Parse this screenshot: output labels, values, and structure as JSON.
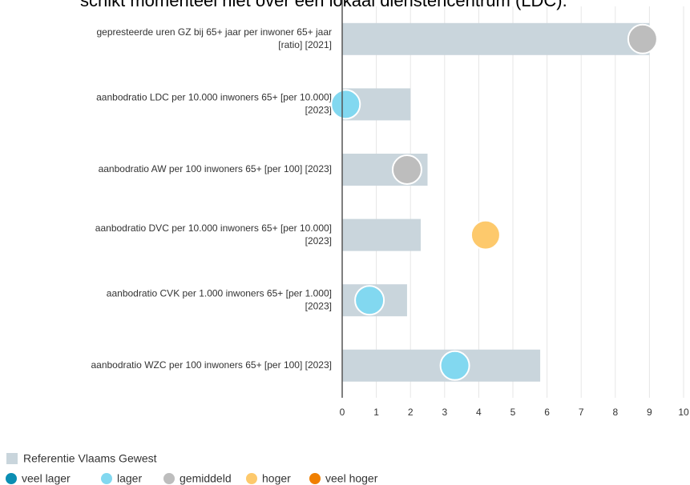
{
  "chart_data": {
    "type": "bar_dot",
    "intro": "schikt momenteel niet over een lokaal dienstencentrum (LDC).",
    "categories": [
      [
        "gepresteerde uren GZ bij 65+ jaar per inwoner 65+ jaar",
        "[ratio] [2021]"
      ],
      [
        "aanbodratio LDC per 10.000 inwoners 65+ [per 10.000]",
        "[2023]"
      ],
      [
        "aanbodratio AW per 100 inwoners 65+ [per 100] [2023]"
      ],
      [
        "aanbodratio DVC per 10.000 inwoners 65+ [per 10.000]",
        "[2023]"
      ],
      [
        "aanbodratio CVK per 1.000 inwoners 65+ [per 1.000]",
        "[2023]"
      ],
      [
        "aanbodratio WZC per 100 inwoners 65+ [per 100] [2023]"
      ]
    ],
    "reference": {
      "name": "Referentie Vlaams Gewest",
      "color": "#c9d5dc",
      "values": [
        9.0,
        2.0,
        2.5,
        2.3,
        1.9,
        5.8
      ]
    },
    "points": {
      "values": [
        8.8,
        0.1,
        1.9,
        4.2,
        0.8,
        3.3
      ],
      "classes": [
        "gemiddeld",
        "lager",
        "gemiddeld",
        "hoger",
        "lager",
        "lager"
      ]
    },
    "classes": [
      {
        "name": "veel lager",
        "color": "#0b8eb3"
      },
      {
        "name": "lager",
        "color": "#82d8f0"
      },
      {
        "name": "gemiddeld",
        "color": "#bdbdbd"
      },
      {
        "name": "hoger",
        "color": "#fdc96c"
      },
      {
        "name": "veel hoger",
        "color": "#f07f00"
      }
    ],
    "xlim": [
      0,
      10
    ],
    "xticks": [
      0,
      1,
      2,
      3,
      4,
      5,
      6,
      7,
      8,
      9,
      10
    ],
    "grid": true
  }
}
